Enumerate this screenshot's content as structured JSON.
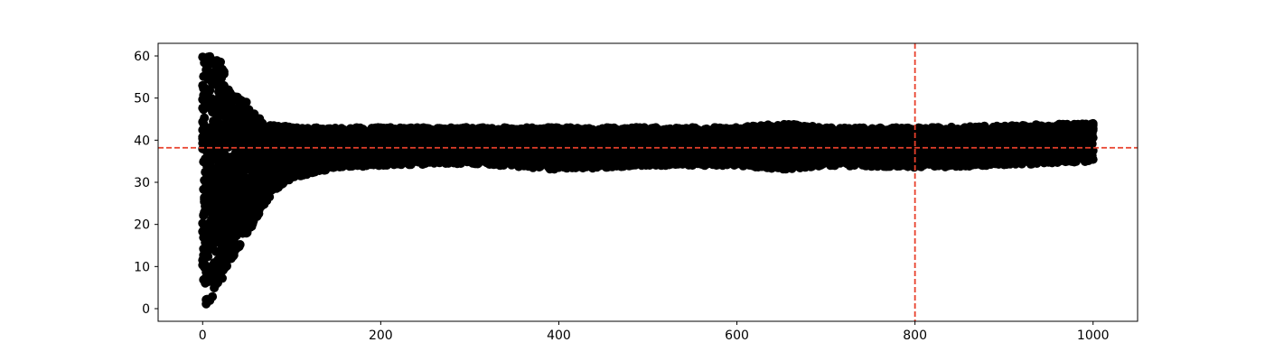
{
  "chart_data": {
    "type": "scatter",
    "title": "",
    "xlabel": "",
    "ylabel": "",
    "xlim": [
      -50,
      1050
    ],
    "ylim": [
      -3,
      63
    ],
    "xticks": [
      0,
      200,
      400,
      600,
      800,
      1000
    ],
    "yticks": [
      0,
      10,
      20,
      30,
      40,
      50,
      60
    ],
    "xtick_labels": [
      "0",
      "200",
      "400",
      "600",
      "800",
      "1000"
    ],
    "ytick_labels": [
      "0",
      "10",
      "20",
      "30",
      "40",
      "50",
      "60"
    ],
    "grid": false,
    "marker_color": "#000000",
    "reference_lines": [
      {
        "orientation": "horizontal",
        "value": 38.2,
        "style": "dashed",
        "color": "#e8402b"
      },
      {
        "orientation": "vertical",
        "value": 800,
        "style": "dashed",
        "color": "#e8402b"
      }
    ],
    "series": [
      {
        "x_range": [
          0,
          1000
        ],
        "description_points": [
          {
            "x": 0,
            "y_low": 0,
            "y_high": 60
          },
          {
            "x": 10,
            "y_low": 2,
            "y_high": 60
          },
          {
            "x": 20,
            "y_low": 6,
            "y_high": 59
          },
          {
            "x": 30,
            "y_low": 11,
            "y_high": 53
          },
          {
            "x": 40,
            "y_low": 14,
            "y_high": 50
          },
          {
            "x": 50,
            "y_low": 18,
            "y_high": 50
          },
          {
            "x": 60,
            "y_low": 21,
            "y_high": 46
          },
          {
            "x": 70,
            "y_low": 25,
            "y_high": 44
          },
          {
            "x": 80,
            "y_low": 28,
            "y_high": 44
          },
          {
            "x": 100,
            "y_low": 31,
            "y_high": 43
          },
          {
            "x": 150,
            "y_low": 33.5,
            "y_high": 43
          },
          {
            "x": 200,
            "y_low": 34,
            "y_high": 43
          },
          {
            "x": 300,
            "y_low": 34.5,
            "y_high": 43
          },
          {
            "x": 400,
            "y_low": 33,
            "y_high": 43
          },
          {
            "x": 500,
            "y_low": 34,
            "y_high": 43
          },
          {
            "x": 600,
            "y_low": 34,
            "y_high": 43
          },
          {
            "x": 650,
            "y_low": 33,
            "y_high": 44
          },
          {
            "x": 700,
            "y_low": 34,
            "y_high": 43
          },
          {
            "x": 800,
            "y_low": 33.5,
            "y_high": 43
          },
          {
            "x": 900,
            "y_low": 34,
            "y_high": 43.5
          },
          {
            "x": 1000,
            "y_low": 35,
            "y_high": 44
          }
        ]
      }
    ]
  }
}
